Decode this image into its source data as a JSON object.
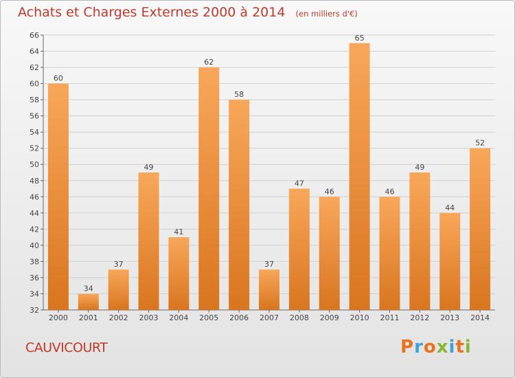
{
  "header": {
    "title": "Achats et Charges Externes 2000 à 2014",
    "unit": "(en milliers d'€)"
  },
  "footer": {
    "commune": "CAUVICOURT",
    "logo": "Proxiti"
  },
  "colors": {
    "title": "#c0392b",
    "bar_light": "#f8a75a",
    "bar_dark": "#d9751f",
    "grid": "#d0d0d0",
    "logo_letters": [
      "#e8731e",
      "#3aa4d6",
      "#e8731e",
      "#8ab833",
      "#3aa4d6",
      "#e8731e",
      "#8ab833"
    ]
  },
  "chart_data": {
    "type": "bar",
    "categories": [
      "2000",
      "2001",
      "2002",
      "2003",
      "2004",
      "2005",
      "2006",
      "2007",
      "2008",
      "2009",
      "2010",
      "2011",
      "2012",
      "2013",
      "2014"
    ],
    "values": [
      60,
      34,
      37,
      49,
      41,
      62,
      58,
      37,
      47,
      46,
      65,
      46,
      49,
      44,
      52
    ],
    "title": "Achats et Charges Externes 2000 à 2014",
    "ylim": [
      32,
      66
    ],
    "yticks": [
      32,
      34,
      36,
      38,
      40,
      42,
      44,
      46,
      48,
      50,
      52,
      54,
      56,
      58,
      60,
      62,
      64,
      66
    ],
    "grid": true,
    "legend": "none"
  }
}
